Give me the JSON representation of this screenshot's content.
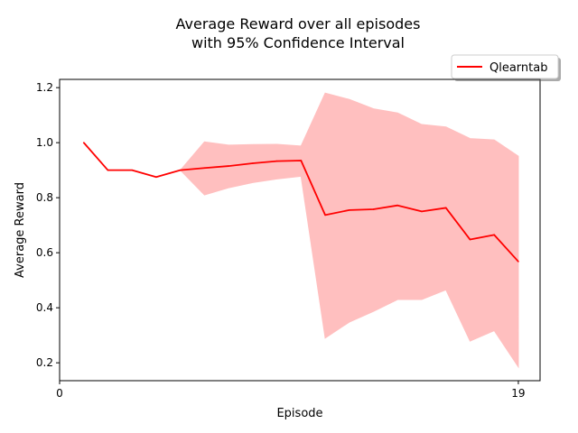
{
  "chart_data": {
    "type": "line",
    "title_line1": "Average Reward over all episodes",
    "title_line2": "with 95% Confidence Interval",
    "xlabel": "Episode",
    "ylabel": "Average Reward",
    "xlim": [
      0,
      19.9
    ],
    "ylim": [
      0.135,
      1.23
    ],
    "xticks": [
      0,
      19
    ],
    "xtick_labels": [
      "0",
      "19"
    ],
    "yticks": [
      0.2,
      0.4,
      0.6,
      0.8,
      1.0,
      1.2
    ],
    "ytick_labels": [
      "0.2",
      "0.4",
      "0.6",
      "0.8",
      "1.0",
      "1.2"
    ],
    "grid": false,
    "legend_position": "top-right, outside axes",
    "series": [
      {
        "name": "Qlearntab",
        "color": "#ff0000",
        "band_color": "#ffbfbf",
        "x": [
          1,
          2,
          3,
          4,
          5,
          6,
          7,
          8,
          9,
          10,
          11,
          12,
          13,
          14,
          15,
          16,
          17,
          18,
          19
        ],
        "values": [
          1.0,
          0.9,
          0.9,
          0.875,
          0.9,
          0.908,
          0.915,
          0.925,
          0.933,
          0.935,
          0.737,
          0.755,
          0.758,
          0.772,
          0.75,
          0.763,
          0.648,
          0.665,
          0.568
        ],
        "ci_upper": [
          1.0,
          0.9,
          0.9,
          0.875,
          0.9,
          1.003,
          0.991,
          0.993,
          0.994,
          0.988,
          1.18,
          1.157,
          1.123,
          1.108,
          1.066,
          1.057,
          1.015,
          1.01,
          0.951
        ],
        "ci_lower": [
          1.0,
          0.9,
          0.9,
          0.875,
          0.9,
          0.81,
          0.836,
          0.855,
          0.868,
          0.878,
          0.29,
          0.348,
          0.387,
          0.43,
          0.43,
          0.465,
          0.279,
          0.317,
          0.185
        ]
      }
    ]
  }
}
